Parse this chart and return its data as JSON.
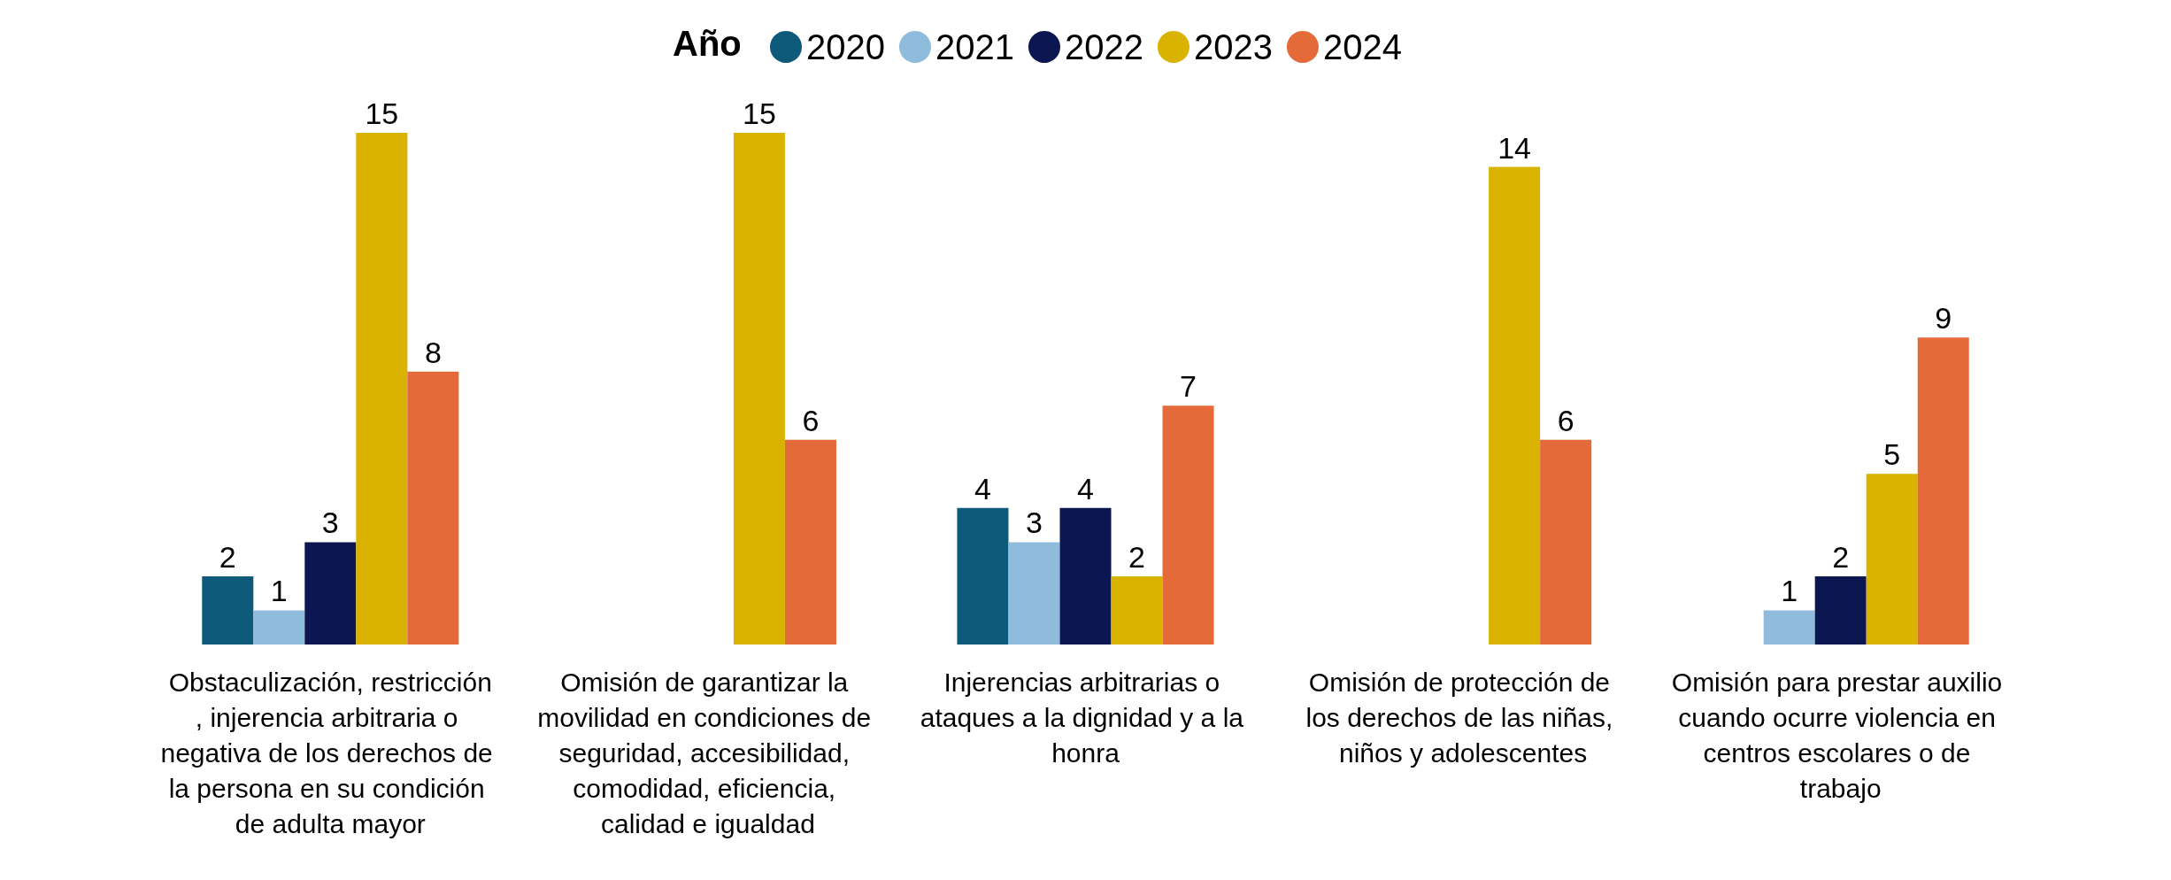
{
  "chart_data": {
    "type": "bar",
    "legend_title": "Año",
    "legend": "top",
    "data_labels": true,
    "grid": false,
    "categories": [
      "Obstaculización, restricción, injerencia arbitraria o negativa de los derechos de la persona en su condición de adulta mayor",
      "Omisión de garantizar la movilidad en condiciones de seguridad, accesibilidad, comodidad, eficiencia, calidad e igualdad",
      "Injerencias arbitrarias o ataques a la dignidad y a la honra",
      "Omisión de protección de los derechos de las niñas, niños y adolescentes",
      "Omisión para prestar auxilio cuando ocurre violencia en centros escolares o de trabajo"
    ],
    "series": [
      {
        "name": "2020",
        "color": "#0e5a7a",
        "values": [
          2,
          null,
          4,
          null,
          null
        ]
      },
      {
        "name": "2021",
        "color": "#8fbcdc",
        "values": [
          1,
          null,
          3,
          null,
          1
        ]
      },
      {
        "name": "2022",
        "color": "#0c1650",
        "values": [
          3,
          null,
          4,
          null,
          2
        ]
      },
      {
        "name": "2023",
        "color": "#d9b300",
        "values": [
          15,
          15,
          2,
          14,
          5
        ]
      },
      {
        "name": "2024",
        "color": "#e46a3a",
        "values": [
          8,
          6,
          7,
          6,
          9
        ]
      }
    ]
  }
}
